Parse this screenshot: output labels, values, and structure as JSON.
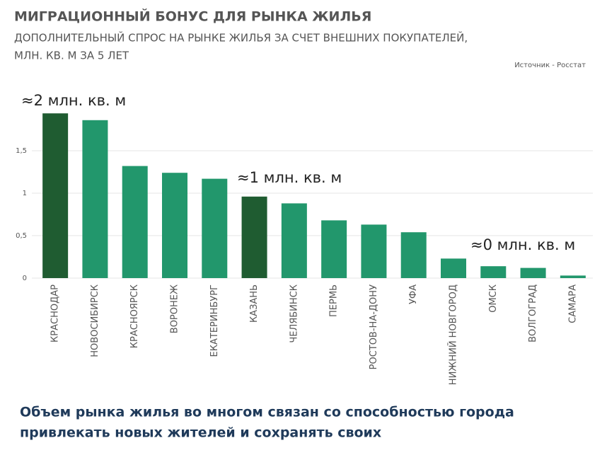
{
  "chart_data": {
    "type": "bar",
    "title": "МИГРАЦИОННЫЙ БОНУС ДЛЯ РЫНКА ЖИЛЬЯ",
    "subtitle": [
      "ДОПОЛНИТЕЛЬНЫЙ СПРОС НА РЫНКЕ ЖИЛЬЯ ЗА СЧЕТ ВНЕШНИХ ПОКУПАТЕЛЕЙ,",
      "МЛН. КВ. М ЗА 5 ЛЕТ"
    ],
    "source": "Источник - Росстат",
    "categories": [
      "КРАСНОДАР",
      "НОВОСИБИРСК",
      "КРАСНОЯРСК",
      "ВОРОНЕЖ",
      "ЕКАТЕРИНБУРГ",
      "КАЗАНЬ",
      "ЧЕЛЯБИНСК",
      "ПЕРМЬ",
      "РОСТОВ-НА-ДОНУ",
      "УФА",
      "НИЖНИЙ НОВГОРОД",
      "ОМСК",
      "ВОЛГОГРАД",
      "САМАРА"
    ],
    "values": [
      1.94,
      1.86,
      1.32,
      1.24,
      1.17,
      0.96,
      0.88,
      0.68,
      0.63,
      0.54,
      0.23,
      0.14,
      0.12,
      0.03
    ],
    "colors": [
      "#1f5c31",
      "#22976c",
      "#22976c",
      "#22976c",
      "#22976c",
      "#1f5c31",
      "#22976c",
      "#22976c",
      "#22976c",
      "#22976c",
      "#22976c",
      "#22976c",
      "#22976c",
      "#22976c"
    ],
    "ylim": [
      0,
      2
    ],
    "yticks": [
      0,
      {
        "value": 0.5,
        "label": "0,5"
      },
      1,
      {
        "value": 1.5,
        "label": "1,5"
      }
    ],
    "grid": true,
    "annotations": [
      "≈2 млн. кв. м",
      "≈1 млн. кв. м",
      "≈0 млн. кв. м"
    ],
    "footer": [
      "Объем рынка жилья во многом связан со способностью города",
      "привлекать новых жителей и сохранять своих"
    ]
  }
}
